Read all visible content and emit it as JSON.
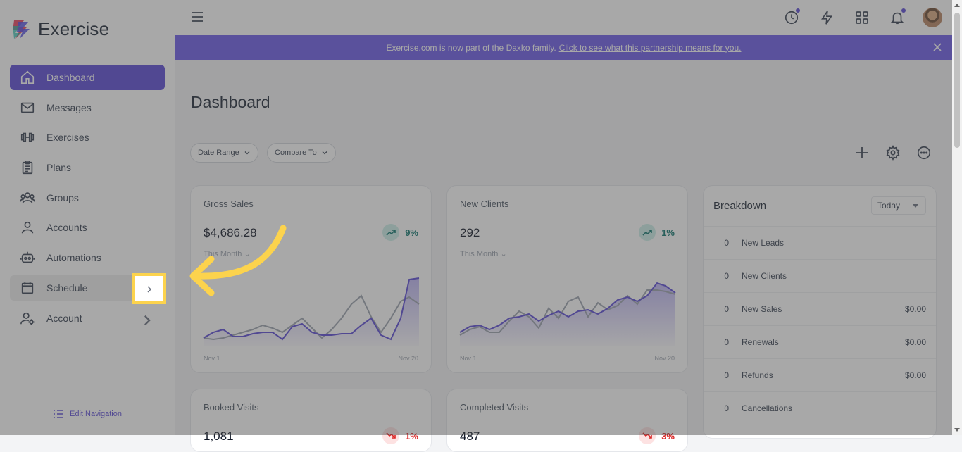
{
  "app": {
    "name": "Exercise"
  },
  "sidebar": {
    "items": [
      {
        "label": "Dashboard",
        "icon": "home-icon"
      },
      {
        "label": "Messages",
        "icon": "mail-icon"
      },
      {
        "label": "Exercises",
        "icon": "dumbbell-icon"
      },
      {
        "label": "Plans",
        "icon": "clipboard-icon"
      },
      {
        "label": "Groups",
        "icon": "users-icon"
      },
      {
        "label": "Accounts",
        "icon": "user-icon"
      },
      {
        "label": "Automations",
        "icon": "robot-icon"
      },
      {
        "label": "Schedule",
        "icon": "calendar-icon"
      },
      {
        "label": "Account",
        "icon": "user-settings-icon"
      }
    ],
    "edit_nav_label": "Edit Navigation"
  },
  "banner": {
    "text": "Exercise.com is now part of the Daxko family.",
    "link": "Click to see what this partnership means for you."
  },
  "page": {
    "title": "Dashboard"
  },
  "filters": {
    "date_range": "Date Range",
    "compare_to": "Compare To"
  },
  "cards": [
    {
      "title": "Gross Sales",
      "value": "$4,686.28",
      "trend": "9%",
      "trend_direction": "up",
      "period": "This Month",
      "x_start": "Nov 1",
      "x_end": "Nov 20"
    },
    {
      "title": "New Clients",
      "value": "292",
      "trend": "1%",
      "trend_direction": "up",
      "period": "This Month",
      "x_start": "Nov 1",
      "x_end": "Nov 20"
    },
    {
      "title": "Booked Visits",
      "value": "1,081",
      "trend": "1%",
      "trend_direction": "down"
    },
    {
      "title": "Completed Visits",
      "value": "487",
      "trend": "3%",
      "trend_direction": "down"
    }
  ],
  "breakdown": {
    "title": "Breakdown",
    "period": "Today",
    "rows": [
      {
        "count": "0",
        "label": "New Leads",
        "amount": ""
      },
      {
        "count": "0",
        "label": "New Clients",
        "amount": ""
      },
      {
        "count": "0",
        "label": "New Sales",
        "amount": "$0.00"
      },
      {
        "count": "0",
        "label": "Renewals",
        "amount": "$0.00"
      },
      {
        "count": "0",
        "label": "Refunds",
        "amount": "$0.00"
      },
      {
        "count": "0",
        "label": "Cancellations",
        "amount": ""
      }
    ]
  },
  "colors": {
    "accent": "#5b4bd6",
    "banner": "#6d5be8",
    "highlight": "#fcd34d"
  }
}
